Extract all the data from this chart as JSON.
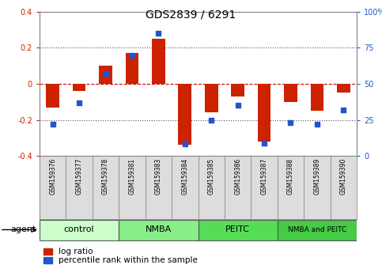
{
  "title": "GDS2839 / 6291",
  "samples": [
    "GSM159376",
    "GSM159377",
    "GSM159378",
    "GSM159381",
    "GSM159383",
    "GSM159384",
    "GSM159385",
    "GSM159386",
    "GSM159387",
    "GSM159388",
    "GSM159389",
    "GSM159390"
  ],
  "log_ratio": [
    -0.13,
    -0.04,
    0.1,
    0.17,
    0.25,
    -0.34,
    -0.16,
    -0.07,
    -0.32,
    -0.1,
    -0.15,
    -0.05
  ],
  "percentile_rank": [
    22,
    37,
    57,
    70,
    85,
    8,
    25,
    35,
    9,
    23,
    22,
    32
  ],
  "groups": [
    {
      "label": "control",
      "start": 0,
      "end": 3,
      "color": "#ccffcc"
    },
    {
      "label": "NMBA",
      "start": 3,
      "end": 6,
      "color": "#88ee88"
    },
    {
      "label": "PEITC",
      "start": 6,
      "end": 9,
      "color": "#55dd55"
    },
    {
      "label": "NMBA and PEITC",
      "start": 9,
      "end": 12,
      "color": "#44cc44"
    }
  ],
  "bar_color": "#cc2200",
  "dot_color": "#2255cc",
  "ylim_left": [
    -0.4,
    0.4
  ],
  "ylim_right": [
    0,
    100
  ],
  "yticks_left": [
    -0.4,
    -0.2,
    0.0,
    0.2,
    0.4
  ],
  "yticks_right": [
    0,
    25,
    50,
    75,
    100
  ],
  "hline_color": "#cc0000",
  "dotted_color": "#555555",
  "background_color": "#ffffff",
  "plot_bg": "#ffffff",
  "title_fontsize": 10,
  "tick_fontsize": 7,
  "legend_fontsize": 7.5,
  "group_label_fontsize": 8,
  "sample_fontsize": 5.5,
  "agent_label": "agent",
  "agent_fontsize": 8,
  "label_bg": "#dddddd",
  "group_colors": [
    "#ccffcc",
    "#88ee88",
    "#55dd55",
    "#44cc44"
  ],
  "group_border": "#555555"
}
